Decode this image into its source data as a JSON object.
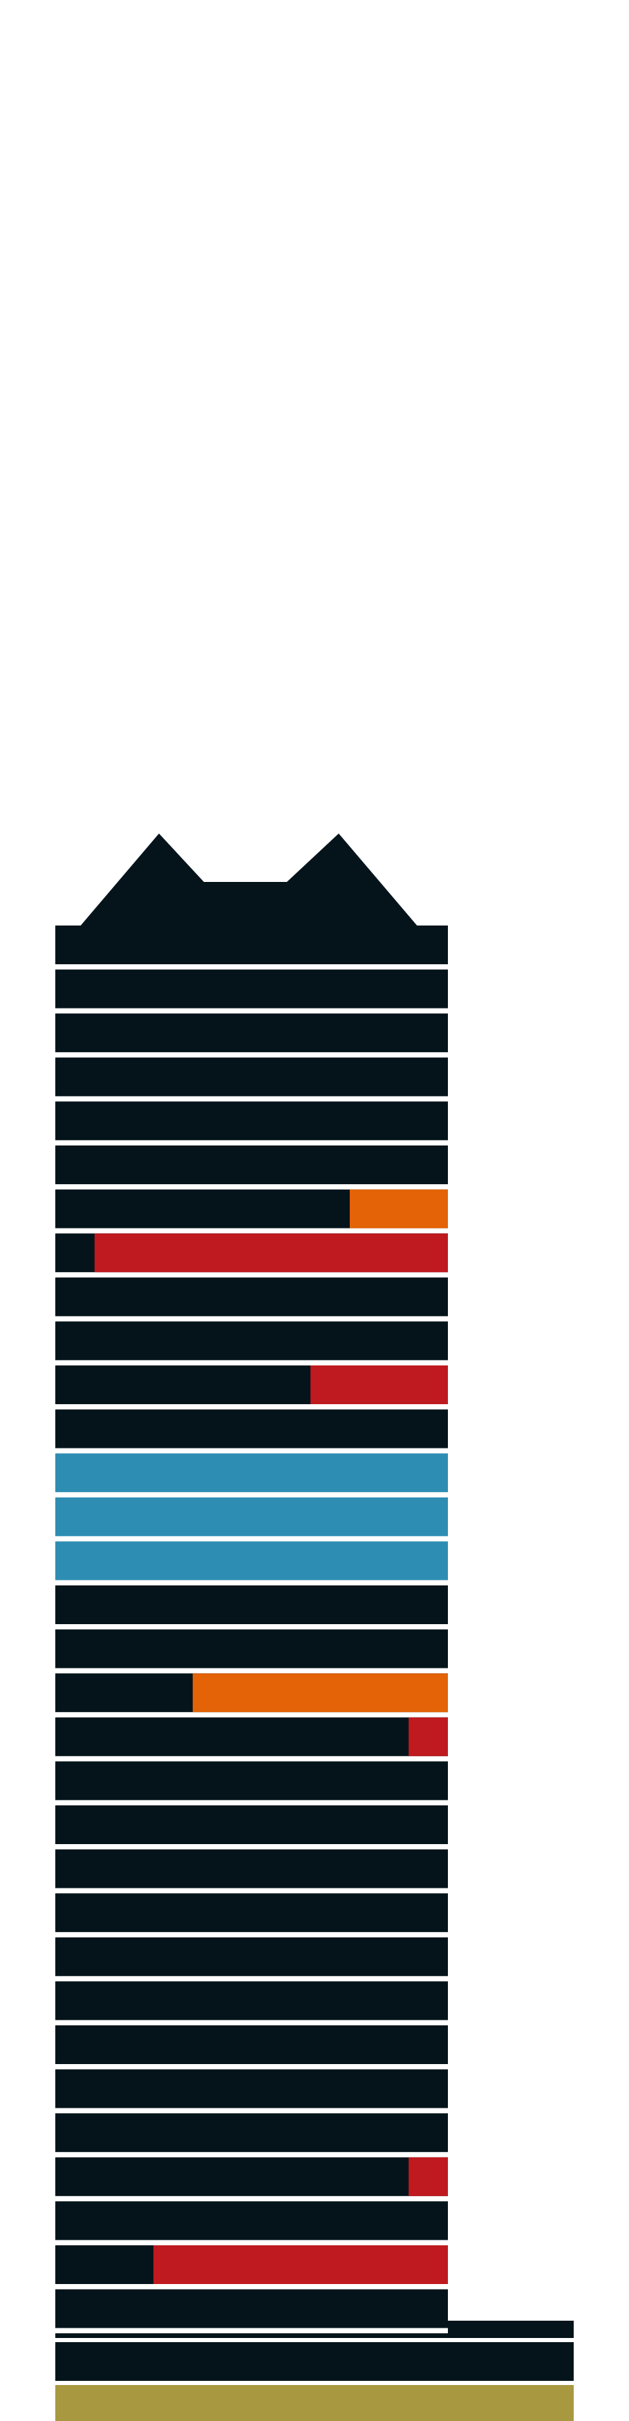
{
  "colors": {
    "background": "#ffffff",
    "building": "#05141b",
    "divider": "#ffffff",
    "orange": "#e36306",
    "red": "#bf1a1f",
    "blue": "#2e8db3",
    "gold": "#a89840"
  },
  "tower": {
    "floor_count": 33,
    "floors_from_top": [
      {
        "color": "building"
      },
      {
        "color": "building"
      },
      {
        "color": "building"
      },
      {
        "color": "building"
      },
      {
        "color": "building"
      },
      {
        "color": "building"
      },
      {
        "color": "building",
        "highlight": {
          "color": "orange",
          "from": 0.75,
          "to": 1.0
        }
      },
      {
        "color": "building",
        "highlight": {
          "color": "red",
          "from": 0.1,
          "to": 1.0
        }
      },
      {
        "color": "building"
      },
      {
        "color": "building"
      },
      {
        "color": "building",
        "highlight": {
          "color": "red",
          "from": 0.65,
          "to": 1.0
        }
      },
      {
        "color": "building"
      },
      {
        "color": "blue"
      },
      {
        "color": "blue"
      },
      {
        "color": "blue"
      },
      {
        "color": "building"
      },
      {
        "color": "building"
      },
      {
        "color": "building",
        "highlight": {
          "color": "orange",
          "from": 0.35,
          "to": 1.0
        }
      },
      {
        "color": "building",
        "highlight": {
          "color": "red",
          "from": 0.9,
          "to": 1.0
        }
      },
      {
        "color": "building"
      },
      {
        "color": "building"
      },
      {
        "color": "building"
      },
      {
        "color": "building"
      },
      {
        "color": "building"
      },
      {
        "color": "building"
      },
      {
        "color": "building"
      },
      {
        "color": "building"
      },
      {
        "color": "building"
      },
      {
        "color": "building",
        "highlight": {
          "color": "red",
          "from": 0.9,
          "to": 1.0
        }
      },
      {
        "color": "building"
      },
      {
        "color": "building",
        "highlight": {
          "color": "red",
          "from": 0.25,
          "to": 1.0
        }
      },
      {
        "color": "building"
      },
      {
        "color": "building"
      }
    ],
    "annex": {
      "color": "building"
    },
    "base": {
      "color": "gold"
    }
  }
}
